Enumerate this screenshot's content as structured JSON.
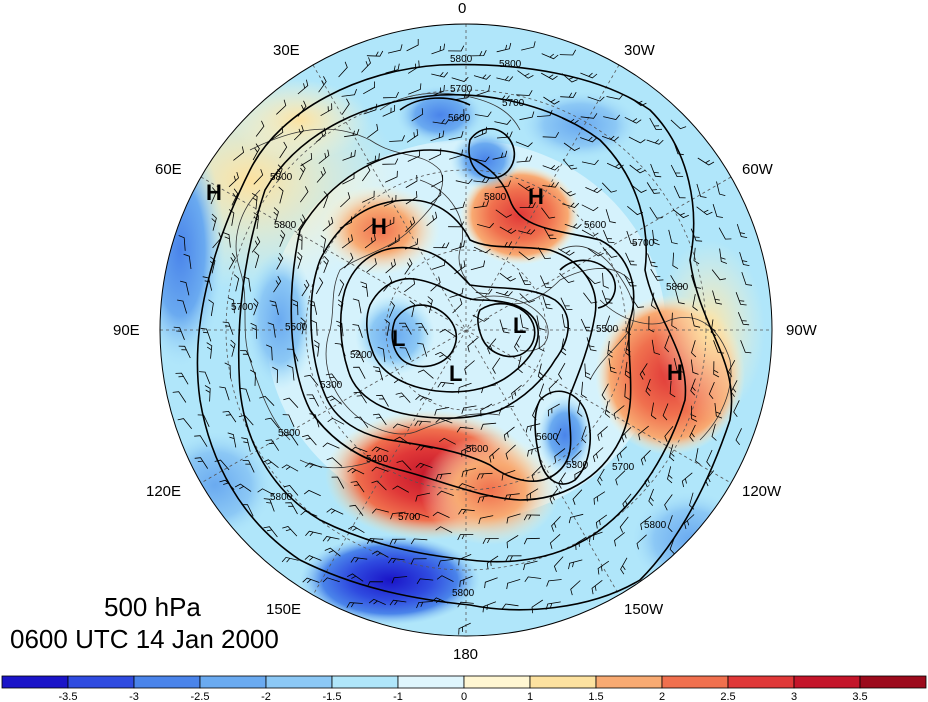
{
  "title": {
    "level": "500 hPa",
    "time": "0600 UTC 14 Jan 2000"
  },
  "longitude_labels": [
    "0",
    "30W",
    "60W",
    "90W",
    "120W",
    "150W",
    "180",
    "150E",
    "120E",
    "90E",
    "60E",
    "30E"
  ],
  "pressure_systems": [
    {
      "type": "H",
      "lon": "60E"
    },
    {
      "type": "H",
      "lon": "40E"
    },
    {
      "type": "H",
      "lon": "20W"
    },
    {
      "type": "H",
      "lon": "100W"
    },
    {
      "type": "L",
      "lon": "100E"
    },
    {
      "type": "L",
      "lon": "150E"
    },
    {
      "type": "L",
      "lon": "90W"
    }
  ],
  "contour_labels": [
    "5800",
    "5800",
    "5700",
    "5700",
    "5600",
    "5800",
    "5800",
    "5600",
    "5700",
    "5800",
    "5500",
    "5700",
    "5200",
    "5300",
    "5800",
    "5500",
    "5800",
    "5400",
    "5600",
    "5700",
    "5800",
    "5300",
    "5600",
    "5700",
    "5800",
    "5800"
  ],
  "colorbar": {
    "ticks": [
      "-3.5",
      "-3",
      "-2.5",
      "-2",
      "-1.5",
      "-1",
      "0",
      "1",
      "1.5",
      "2",
      "2.5",
      "3",
      "3.5"
    ],
    "colors": [
      "#1a14c8",
      "#2f4be0",
      "#4a84ea",
      "#6aaaf0",
      "#8cc8f5",
      "#b0e6fa",
      "#dff5fc",
      "#fff6d2",
      "#fde2a0",
      "#f8aa72",
      "#f0704e",
      "#e03838",
      "#c4152a",
      "#9c0a1c"
    ]
  },
  "colors": {
    "contour": "#000000",
    "border": "#333333",
    "wind": "#000000"
  }
}
